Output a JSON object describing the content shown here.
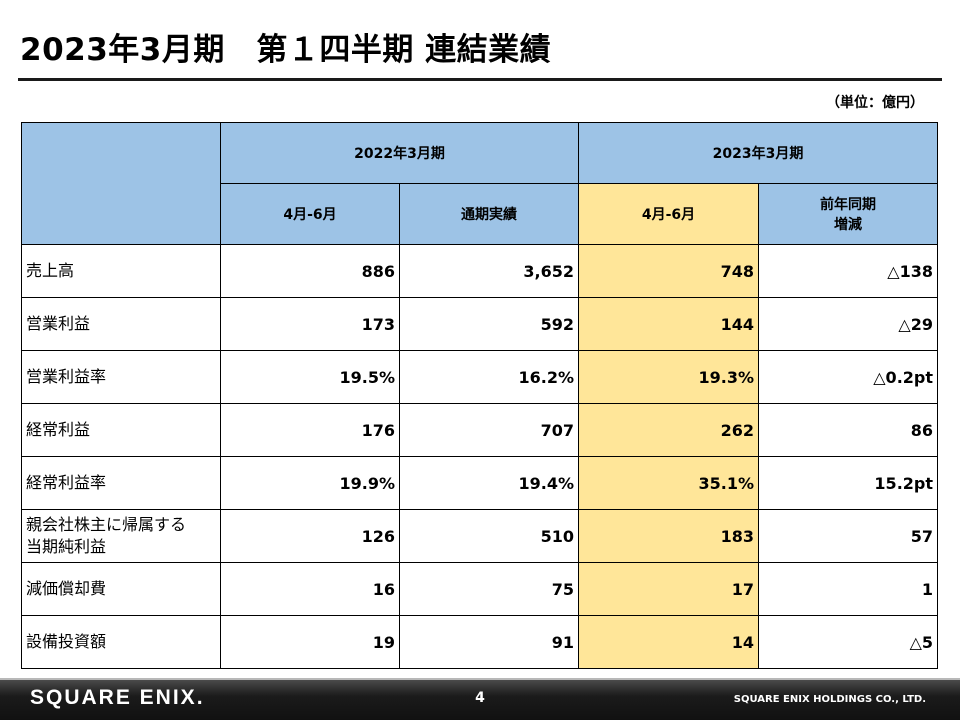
{
  "title": "2023年3月期　第１四半期 連結業績",
  "unit": "（単位：億円）",
  "header": {
    "fy2022": "2022年3月期",
    "fy2023": "2023年3月期",
    "q1_2022": "4月-6月",
    "full_year_2022": "通期実績",
    "q1_2023": "4月-6月",
    "yoy_line1": "前年同期",
    "yoy_line2": "増減"
  },
  "rows": [
    {
      "label": "売上高",
      "label2": "",
      "q1_2022": "886",
      "fy_2022": "3,652",
      "q1_2023": "748",
      "yoy": "△138"
    },
    {
      "label": "営業利益",
      "label2": "",
      "q1_2022": "173",
      "fy_2022": "592",
      "q1_2023": "144",
      "yoy": "△29"
    },
    {
      "label": "営業利益率",
      "label2": "",
      "q1_2022": "19.5%",
      "fy_2022": "16.2%",
      "q1_2023": "19.3%",
      "yoy": "△0.2pt"
    },
    {
      "label": "経常利益",
      "label2": "",
      "q1_2022": "176",
      "fy_2022": "707",
      "q1_2023": "262",
      "yoy": "86"
    },
    {
      "label": "経常利益率",
      "label2": "",
      "q1_2022": "19.9%",
      "fy_2022": "19.4%",
      "q1_2023": "35.1%",
      "yoy": "15.2pt"
    },
    {
      "label": "親会社株主に帰属する",
      "label2": "当期純利益",
      "q1_2022": "126",
      "fy_2022": "510",
      "q1_2023": "183",
      "yoy": "57"
    },
    {
      "label": "減価償却費",
      "label2": "",
      "q1_2022": "16",
      "fy_2022": "75",
      "q1_2023": "17",
      "yoy": "1"
    },
    {
      "label": "設備投資額",
      "label2": "",
      "q1_2022": "19",
      "fy_2022": "91",
      "q1_2023": "14",
      "yoy": "△5"
    }
  ],
  "footer": {
    "logo": "SQUARE ENIX.",
    "page": "4",
    "company": "SQUARE ENIX HOLDINGS CO., LTD."
  },
  "colors": {
    "header_blue": "#9dc3e6",
    "highlight_yellow": "#ffe699"
  }
}
